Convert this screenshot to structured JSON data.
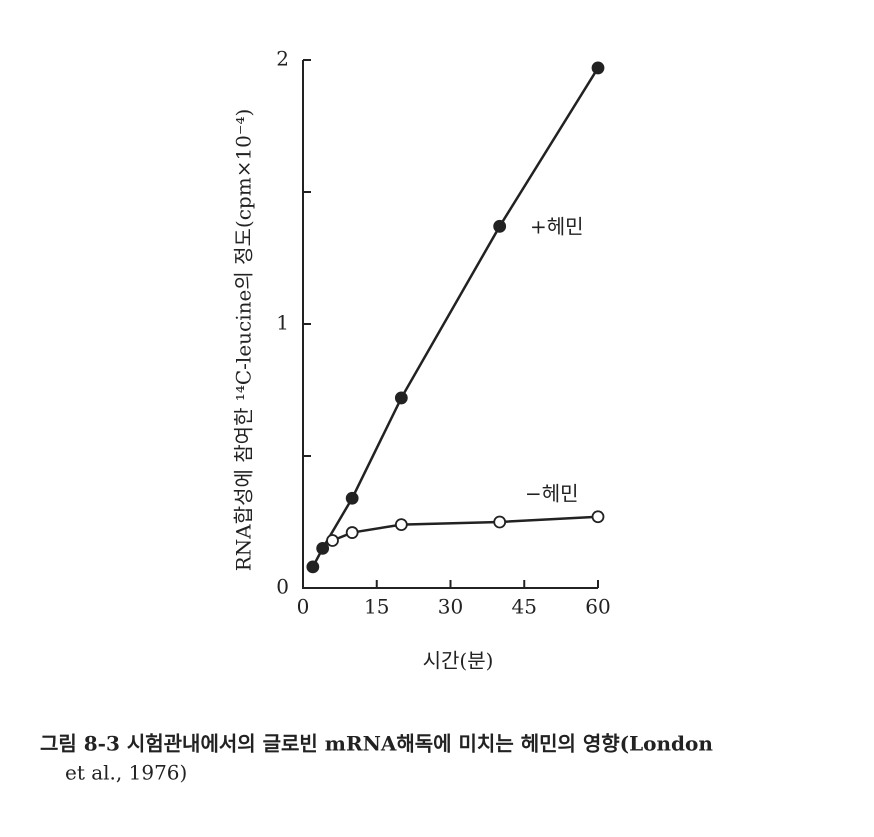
{
  "chart_data": {
    "type": "scatter",
    "ylabel": "RNA합성에 참여한 ¹⁴C-leucine의 정도(cpm×10⁻⁴)",
    "xlabel": "시간(분)",
    "xlim": [
      0,
      60
    ],
    "xticks": [
      0,
      15,
      30,
      45,
      60
    ],
    "ylim": [
      0,
      2
    ],
    "yticks": [
      0,
      1,
      2
    ],
    "yminorticks": [
      0.5,
      1.5
    ],
    "series": [
      {
        "name": "+헤민",
        "marker": "filled",
        "color": "#222222",
        "x": [
          2,
          4,
          10,
          20,
          40,
          60
        ],
        "values": [
          0.08,
          0.15,
          0.34,
          0.72,
          1.37,
          1.97
        ]
      },
      {
        "name": "−헤민",
        "marker": "open",
        "color": "#222222",
        "x": [
          6,
          10,
          20,
          40,
          60
        ],
        "values": [
          0.18,
          0.21,
          0.24,
          0.25,
          0.27
        ]
      }
    ],
    "caption": [
      "그림 8-3 시험관내에서의 글로빈 mRNA해독에 미치는 헤민의 영향(London",
      "et al., 1976)"
    ]
  }
}
